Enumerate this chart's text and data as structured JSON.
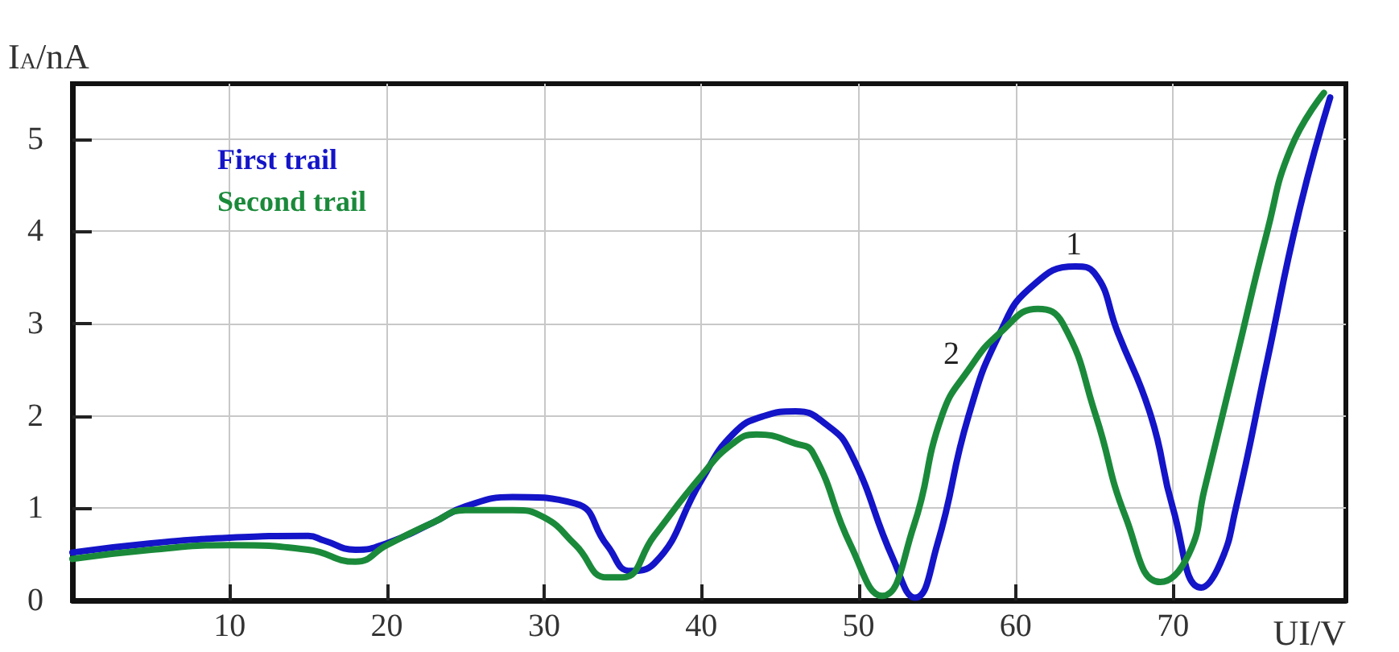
{
  "chart_data": {
    "type": "line",
    "xlabel": "UI/V",
    "ylabel": "I$_{A}$/nA",
    "xlim": [
      0,
      81
    ],
    "ylim": [
      0,
      5.6
    ],
    "xticks": [
      10,
      20,
      30,
      40,
      50,
      60,
      70
    ],
    "yticks": [
      0,
      1,
      2,
      3,
      4,
      5
    ],
    "grid": true,
    "legend": "top left",
    "marker": "none",
    "line_style": "solid",
    "annotations": [
      "1",
      "2"
    ],
    "series": [
      {
        "name": "First trail",
        "color": "#1414c8",
        "x": [
          0,
          5,
          10,
          15,
          16,
          18,
          20,
          23,
          25,
          28,
          32,
          34,
          35.5,
          37,
          40,
          42,
          44,
          46,
          48,
          49.5,
          52.2,
          53.6,
          55,
          57,
          59,
          61,
          63.8,
          65,
          66.5,
          68.6,
          70,
          71.8,
          73,
          74,
          76,
          78,
          80
        ],
        "values": [
          0.52,
          0.62,
          0.68,
          0.7,
          0.65,
          0.55,
          0.62,
          0.85,
          1.02,
          1.12,
          1.05,
          0.6,
          0.32,
          0.4,
          1.3,
          1.8,
          2.0,
          2.05,
          1.9,
          1.6,
          0.45,
          0.03,
          0.6,
          2.0,
          2.9,
          3.4,
          3.62,
          3.55,
          2.9,
          2.0,
          1.0,
          0.14,
          0.4,
          1.0,
          2.6,
          4.2,
          5.45
        ]
      },
      {
        "name": "Second trail",
        "color": "#1a8a3a",
        "x": [
          0,
          5,
          10,
          15,
          18,
          20,
          23,
          25,
          28,
          30,
          32,
          34,
          35,
          37,
          40,
          42,
          43.5,
          46,
          47.1,
          49.5,
          51.5,
          53.5,
          55.3,
          57,
          59,
          61.4,
          63,
          65.1,
          67,
          69.2,
          71,
          72,
          74,
          76,
          77.5,
          79.6
        ],
        "values": [
          0.45,
          0.55,
          0.6,
          0.55,
          0.42,
          0.6,
          0.85,
          0.98,
          0.98,
          0.9,
          0.6,
          0.25,
          0.25,
          0.7,
          1.35,
          1.7,
          1.8,
          1.7,
          1.6,
          0.6,
          0.05,
          0.8,
          2.0,
          2.5,
          2.9,
          3.16,
          3.0,
          2.0,
          0.9,
          0.2,
          0.5,
          1.2,
          2.6,
          4.0,
          4.9,
          5.5
        ]
      }
    ]
  }
}
